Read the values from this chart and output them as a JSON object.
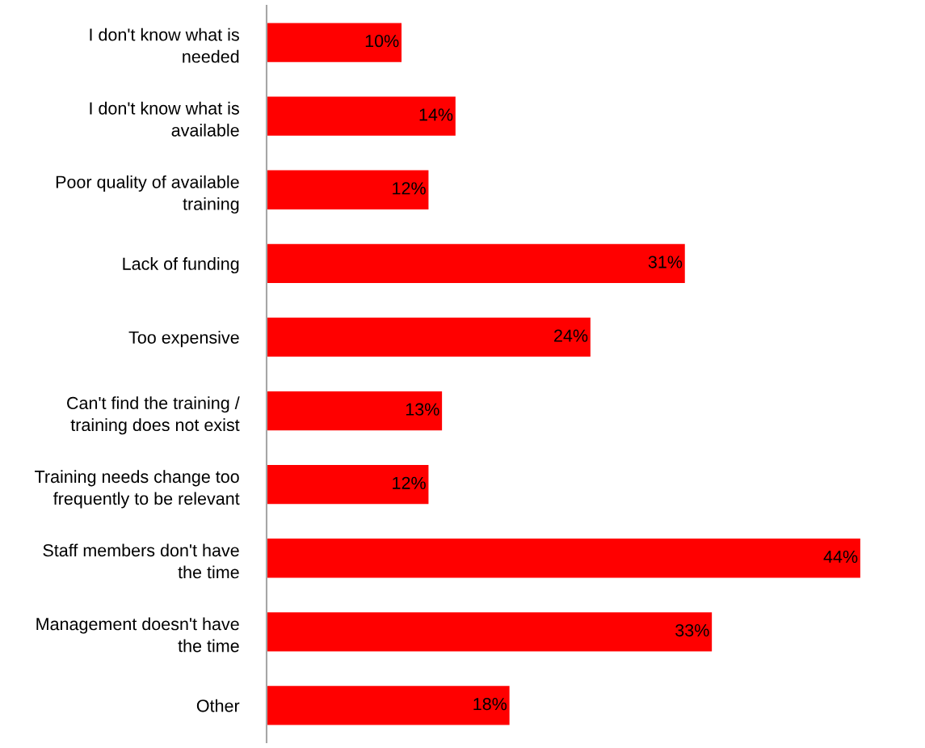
{
  "chart_data": {
    "type": "bar",
    "orientation": "horizontal",
    "categories": [
      "I don't know what is\nneeded",
      "I don't know what is\navailable",
      "Poor quality of available\ntraining",
      "Lack of funding",
      "Too expensive",
      "Can't find the training /\ntraining does not exist",
      "Training needs change too\nfrequently to be relevant",
      "Staff members don't have\nthe time",
      "Management doesn't have\nthe time",
      "Other"
    ],
    "values": [
      10,
      14,
      12,
      31,
      24,
      13,
      12,
      44,
      33,
      18
    ],
    "value_labels": [
      "10%",
      "14%",
      "12%",
      "31%",
      "24%",
      "13%",
      "12%",
      "44%",
      "33%",
      "18%"
    ],
    "color": "#ff0000",
    "grid": false,
    "legend": false
  }
}
